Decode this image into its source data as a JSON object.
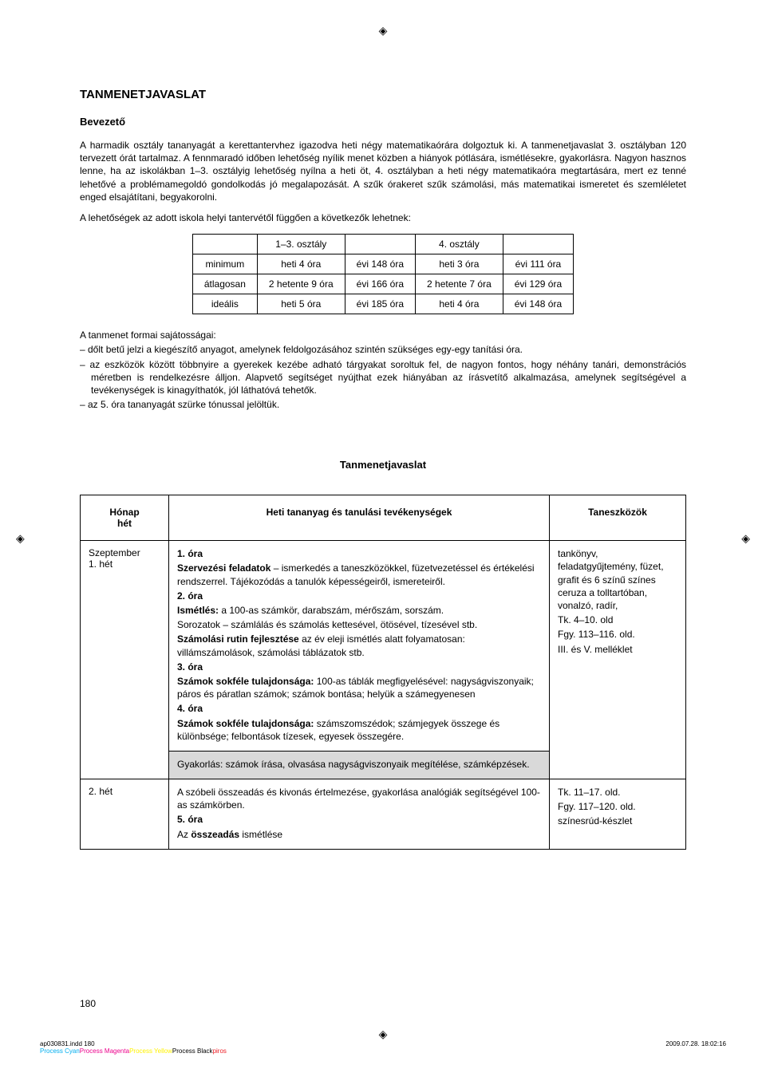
{
  "regMark": "◈",
  "title": "TANMENETJAVASLAT",
  "subtitle": "Bevezető",
  "para1": "A harmadik osztály tananyagát a kerettantervhez igazodva heti négy matematikaórára dolgoztuk ki. A tanmenetjavaslat 3. osztályban 120 tervezett órát tartalmaz. A fennmaradó időben lehetőség nyílik menet közben a hiányok pótlására, ismétlésekre, gyakorlásra. Nagyon hasznos lenne, ha az iskolákban 1–3. osztályig lehetőség nyílna a heti öt, 4. osztályban a heti négy matematikaóra megtartására, mert ez tenné lehetővé a problémamegoldó gondolkodás jó megalapozását. A szűk órakeret szűk számolási, más matematikai ismeretet és szemléletet enged elsajátítani, begyakorolni.",
  "para2": "A lehetőségek az adott iskola helyi tantervétől függően a következők lehetnek:",
  "curriculumTable": {
    "headers": [
      "",
      "1–3. osztály",
      "",
      "4. osztály",
      ""
    ],
    "rows": [
      [
        "minimum",
        "heti 4 óra",
        "évi 148 óra",
        "heti 3 óra",
        "évi 111 óra"
      ],
      [
        "átlagosan",
        "2 hetente 9 óra",
        "évi 166 óra",
        "2 hetente 7 óra",
        "évi 129 óra"
      ],
      [
        "ideális",
        "heti 5 óra",
        "évi 185 óra",
        "heti 4 óra",
        "évi 148 óra"
      ]
    ]
  },
  "featuresIntro": "A tanmenet formai sajátosságai:",
  "featureBullets": [
    "– dőlt betű jelzi a kiegészítő anyagot, amelynek feldolgozásához szintén szükséges egy-egy tanítási óra.",
    "– az eszközök között többnyire a gyerekek kezébe adható tárgyakat soroltuk fel, de nagyon fontos, hogy néhány tanári, demonstrációs méretben is rendelkezésre álljon. Alapvető segítséget nyújthat ezek hiányában az írásvetítő alkalmazása, amelynek segítségével a tevékenységek is kinagyíthatók, jól láthatóvá tehetők.",
    "– az 5. óra tananyagát szürke tónussal jelöltük."
  ],
  "sectionTitle": "Tanmenetjavaslat",
  "planHeaders": {
    "col1a": "Hónap",
    "col1b": "hét",
    "col2": "Heti tananyag és tanulási tevékenységek",
    "col3": "Taneszközök"
  },
  "row1": {
    "monthLine1": "Szeptember",
    "monthLine2": "1. hét",
    "l1": "1. óra",
    "l2a": "Szervezési feladatok",
    "l2b": " – ismerkedés a taneszközökkel, füzetvezetéssel és értékelési rendszerrel. Tájékozódás a tanulók képességeiről, ismereteiről.",
    "l3": "2. óra",
    "l4a": "Ismétlés:",
    "l4b": " a 100-as számkör, darabszám, mérőszám, sorszám.",
    "l5": "Sorozatok – számlálás és számolás kettesével, ötösével, tízesével stb.",
    "l6a": "Számolási rutin fejlesztése",
    "l6b": " az év eleji ismétlés alatt folyamatosan: villámszámolások, számolási táblázatok stb.",
    "l7": "3. óra",
    "l8a": "Számok sokféle tulajdonsága:",
    "l8b": " 100-as táblák megfigyelésével: nagyságviszonyaik; páros és páratlan számok; számok bontása; helyük a számegyenesen",
    "l9": "4. óra",
    "l10a": "Számok sokféle tulajdonsága:",
    "l10b": " számszomszédok; számjegyek összege és különbsége; felbontások tízesek, egyesek összegére.",
    "tools1": "tankönyv, feladatgyűjtemény, füzet, grafit és 6 színű színes ceruza a tolltartóban, vonalzó, radír,",
    "tools2": "Tk. 4–10. old",
    "tools3": "Fgy. 113–116. old.",
    "tools4": "III. és V. melléklet"
  },
  "row1gray": "Gyakorlás: számok írása, olvasása nagyságviszonyaik megítélése, számképzések.",
  "row2": {
    "month": "2. hét",
    "l1": "A szóbeli összeadás és kivonás értelmezése, gyakorlása analógiák segítségével 100-as számkörben.",
    "l2": "5. óra",
    "l3a": "Az ",
    "l3b": "összeadás",
    "l3c": " ismétlése",
    "tools1": "Tk. 11–17. old.",
    "tools2": "Fgy. 117–120. old.",
    "tools3": "színesrúd-készlet"
  },
  "pageNumber": "180",
  "footer": {
    "file": "ap030831.indd   180",
    "date": "2009.07.28.   18:02:16",
    "colors": {
      "cyan": "Process Cyan",
      "magenta": "Process Magenta",
      "yellow": "Process Yellow",
      "black": "Process Black",
      "piros": "piros"
    }
  }
}
